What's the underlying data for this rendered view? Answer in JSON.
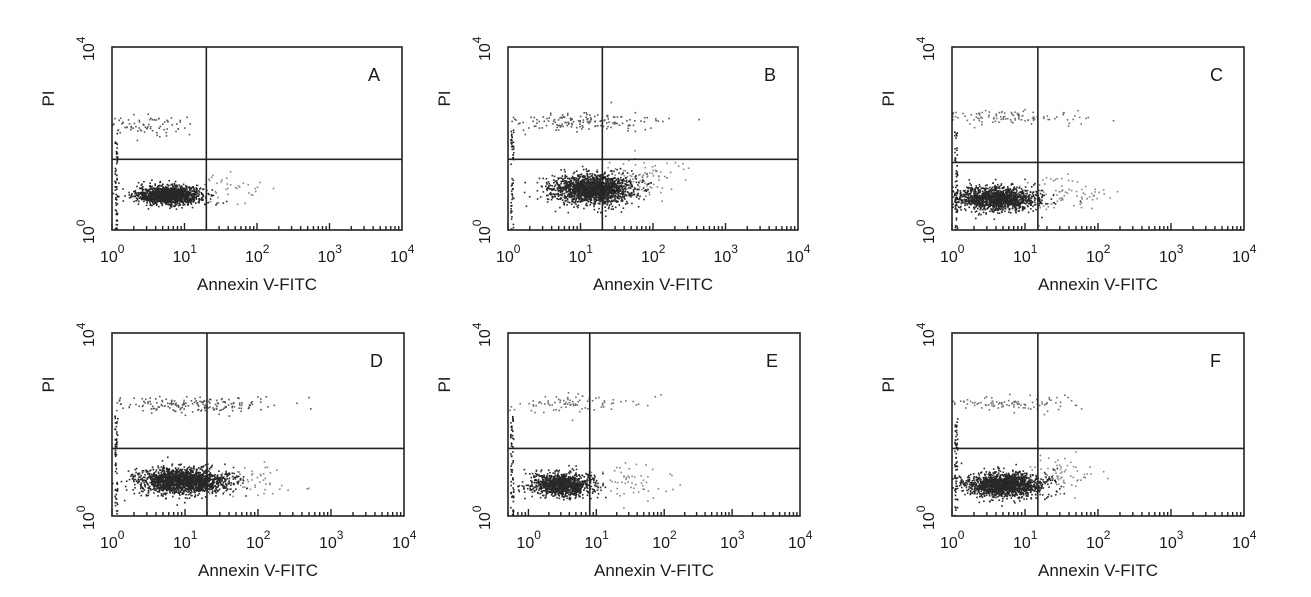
{
  "chart_data": [
    {
      "type": "scatter",
      "panel_label": "A",
      "xlabel": "Annexin V-FITC",
      "ylabel": "PI",
      "x_scale": "log",
      "y_scale": "log",
      "xlim": [
        1,
        10000
      ],
      "ylim": [
        1,
        10000
      ],
      "x_ticks": [
        {
          "base": "10",
          "exp": "0"
        },
        {
          "base": "10",
          "exp": "1"
        },
        {
          "base": "10",
          "exp": "2"
        },
        {
          "base": "10",
          "exp": "3"
        },
        {
          "base": "10",
          "exp": "4"
        }
      ],
      "y_ticks": [
        {
          "base": "10",
          "exp": "0"
        },
        {
          "base": "10",
          "exp": "4"
        }
      ],
      "quadrant_gate": {
        "x": 20,
        "y": 35
      },
      "populations": [
        {
          "x": 6,
          "y": 6,
          "sx": 0.22,
          "sy": 0.1,
          "n": 1400,
          "opacity": 0.9
        },
        {
          "x": 3,
          "y": 200,
          "sx": 0.35,
          "sy": 0.1,
          "n": 80,
          "opacity": 0.7
        },
        {
          "x": 40,
          "y": 8,
          "sx": 0.25,
          "sy": 0.18,
          "n": 40,
          "opacity": 0.5
        }
      ]
    },
    {
      "type": "scatter",
      "panel_label": "B",
      "xlabel": "Annexin V-FITC",
      "ylabel": "PI",
      "x_scale": "log",
      "y_scale": "log",
      "xlim": [
        1,
        10000
      ],
      "ylim": [
        1,
        10000
      ],
      "x_ticks": [
        {
          "base": "10",
          "exp": "0"
        },
        {
          "base": "10",
          "exp": "1"
        },
        {
          "base": "10",
          "exp": "2"
        },
        {
          "base": "10",
          "exp": "3"
        },
        {
          "base": "10",
          "exp": "4"
        }
      ],
      "y_ticks": [
        {
          "base": "10",
          "exp": "0"
        },
        {
          "base": "10",
          "exp": "4"
        }
      ],
      "quadrant_gate": {
        "x": 20,
        "y": 35
      },
      "populations": [
        {
          "x": 14,
          "y": 8,
          "sx": 0.28,
          "sy": 0.16,
          "n": 1700,
          "opacity": 0.9
        },
        {
          "x": 10,
          "y": 250,
          "sx": 0.55,
          "sy": 0.1,
          "n": 160,
          "opacity": 0.7
        },
        {
          "x": 60,
          "y": 15,
          "sx": 0.3,
          "sy": 0.2,
          "n": 120,
          "opacity": 0.5
        }
      ]
    },
    {
      "type": "scatter",
      "panel_label": "C",
      "xlabel": "Annexin V-FITC",
      "ylabel": "PI",
      "x_scale": "log",
      "y_scale": "log",
      "xlim": [
        1,
        10000
      ],
      "ylim": [
        1,
        10000
      ],
      "x_ticks": [
        {
          "base": "10",
          "exp": "0"
        },
        {
          "base": "10",
          "exp": "1"
        },
        {
          "base": "10",
          "exp": "2"
        },
        {
          "base": "10",
          "exp": "3"
        },
        {
          "base": "10",
          "exp": "4"
        }
      ],
      "y_ticks": [
        {
          "base": "10",
          "exp": "0"
        },
        {
          "base": "10",
          "exp": "4"
        }
      ],
      "quadrant_gate": {
        "x": 15,
        "y": 30
      },
      "populations": [
        {
          "x": 4,
          "y": 5,
          "sx": 0.28,
          "sy": 0.13,
          "n": 1400,
          "opacity": 0.9
        },
        {
          "x": 6,
          "y": 300,
          "sx": 0.5,
          "sy": 0.08,
          "n": 120,
          "opacity": 0.6
        },
        {
          "x": 35,
          "y": 6,
          "sx": 0.3,
          "sy": 0.2,
          "n": 80,
          "opacity": 0.5
        }
      ]
    },
    {
      "type": "scatter",
      "panel_label": "D",
      "xlabel": "Annexin V-FITC",
      "ylabel": "PI",
      "x_scale": "log",
      "y_scale": "log",
      "xlim": [
        1,
        10000
      ],
      "ylim": [
        1,
        10000
      ],
      "x_ticks": [
        {
          "base": "10",
          "exp": "0"
        },
        {
          "base": "10",
          "exp": "1"
        },
        {
          "base": "10",
          "exp": "2"
        },
        {
          "base": "10",
          "exp": "3"
        },
        {
          "base": "10",
          "exp": "4"
        }
      ],
      "y_ticks": [
        {
          "base": "10",
          "exp": "0"
        },
        {
          "base": "10",
          "exp": "4"
        }
      ],
      "quadrant_gate": {
        "x": 20,
        "y": 30
      },
      "populations": [
        {
          "x": 9,
          "y": 6,
          "sx": 0.3,
          "sy": 0.14,
          "n": 1800,
          "opacity": 0.9
        },
        {
          "x": 15,
          "y": 280,
          "sx": 0.55,
          "sy": 0.08,
          "n": 180,
          "opacity": 0.7
        },
        {
          "x": 70,
          "y": 6,
          "sx": 0.28,
          "sy": 0.18,
          "n": 60,
          "opacity": 0.5
        }
      ]
    },
    {
      "type": "scatter",
      "panel_label": "E",
      "xlabel": "Annexin V-FITC",
      "ylabel": "PI",
      "x_scale": "log",
      "y_scale": "log",
      "xlim": [
        0.5,
        10000
      ],
      "ylim": [
        1,
        10000
      ],
      "x_ticks": [
        {
          "base": "10",
          "exp": "0"
        },
        {
          "base": "10",
          "exp": "1"
        },
        {
          "base": "10",
          "exp": "2"
        },
        {
          "base": "10",
          "exp": "3"
        },
        {
          "base": "10",
          "exp": "4"
        }
      ],
      "y_ticks": [
        {
          "base": "10",
          "exp": "0"
        },
        {
          "base": "10",
          "exp": "4"
        }
      ],
      "quadrant_gate": {
        "x": 8,
        "y": 30
      },
      "populations": [
        {
          "x": 3,
          "y": 5,
          "sx": 0.22,
          "sy": 0.13,
          "n": 1100,
          "opacity": 0.9
        },
        {
          "x": 4,
          "y": 300,
          "sx": 0.5,
          "sy": 0.1,
          "n": 90,
          "opacity": 0.6
        },
        {
          "x": 25,
          "y": 6,
          "sx": 0.3,
          "sy": 0.2,
          "n": 60,
          "opacity": 0.5
        }
      ]
    },
    {
      "type": "scatter",
      "panel_label": "F",
      "xlabel": "Annexin V-FITC",
      "ylabel": "PI",
      "x_scale": "log",
      "y_scale": "log",
      "xlim": [
        1,
        10000
      ],
      "ylim": [
        1,
        10000
      ],
      "x_ticks": [
        {
          "base": "10",
          "exp": "0"
        },
        {
          "base": "10",
          "exp": "1"
        },
        {
          "base": "10",
          "exp": "2"
        },
        {
          "base": "10",
          "exp": "3"
        },
        {
          "base": "10",
          "exp": "4"
        }
      ],
      "y_ticks": [
        {
          "base": "10",
          "exp": "0"
        },
        {
          "base": "10",
          "exp": "4"
        }
      ],
      "quadrant_gate": {
        "x": 15,
        "y": 30
      },
      "populations": [
        {
          "x": 5,
          "y": 5,
          "sx": 0.26,
          "sy": 0.13,
          "n": 1500,
          "opacity": 0.9
        },
        {
          "x": 6,
          "y": 300,
          "sx": 0.5,
          "sy": 0.08,
          "n": 110,
          "opacity": 0.6
        },
        {
          "x": 30,
          "y": 8,
          "sx": 0.28,
          "sy": 0.18,
          "n": 70,
          "opacity": 0.5
        }
      ]
    }
  ]
}
